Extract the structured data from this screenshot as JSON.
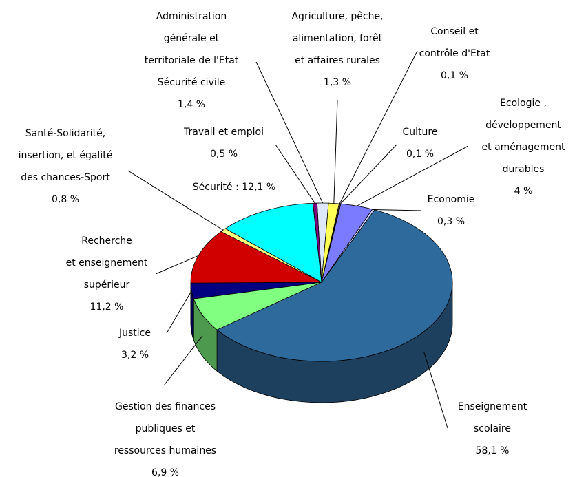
{
  "chart_data": {
    "type": "pie",
    "categories": [
      "Administration\ngénérale et\nterritoriale de l'Etat\nSécurité civile",
      "Agriculture, pêche,\nalimentation, forêt\net affaires rurales",
      "Conseil et\ncontrôle d'Etat",
      "Culture",
      "Ecologie ,\ndéveloppement\net aménagement\ndurables",
      "Economie",
      "Enseignement\nscolaire",
      "Gestion des finances\npubliques et\nressources humaines",
      "Justice",
      "Recherche\net enseignement\nsupérieur",
      "Santé-Solidarité,\ninsertion, et égalité\ndes chances-Sport",
      "Sécurité :",
      "Travail et emploi"
    ],
    "values": [
      1.4,
      1.3,
      0.1,
      0.1,
      4,
      0.3,
      58.1,
      6.9,
      3.2,
      11.2,
      0.8,
      12.1,
      0.5
    ],
    "value_labels": [
      "1,4 %",
      "1,3 %",
      "0,1 %",
      "0,1 %",
      "4 %",
      "0,3 %",
      "58,1 %",
      "6,9 %",
      "3,2 %",
      "11,2 %",
      "0,8 %",
      "12,1 %",
      "0,5 %"
    ],
    "colors": [
      "#dde8ff",
      "#ffff55",
      "#ffcc99",
      "#ff99cc",
      "#7b7bff",
      "#c8c8ff",
      "#2f6a9c",
      "#80ff80",
      "#000080",
      "#d00000",
      "#ffff80",
      "#00ffff",
      "#800080"
    ]
  }
}
